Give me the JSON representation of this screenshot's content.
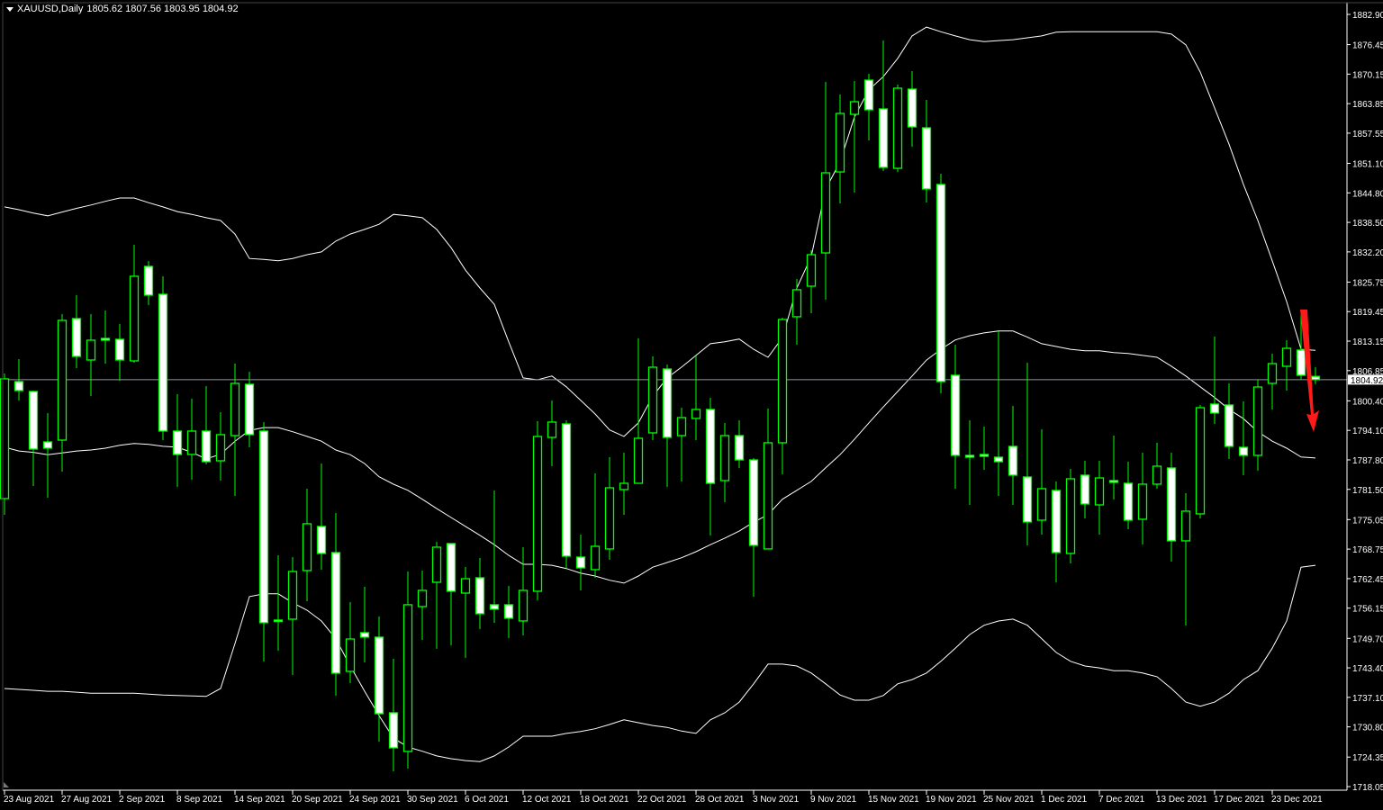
{
  "header": {
    "symbol": "XAUUSD,Daily",
    "ohlc": "1805.62 1807.56 1803.95 1804.92"
  },
  "colors": {
    "background": "#000000",
    "candle_outline": "#00ff00",
    "bull_body": "#000000",
    "bear_body": "#ffffff",
    "bands": "#ffffff",
    "price_line": "#8c96a0",
    "arrow": "#ff1a1a",
    "axis": "#ffffff"
  },
  "icons": {
    "menu": "triangle-down-icon",
    "annotation": "red-down-arrow"
  },
  "chart_data": {
    "type": "candlestick",
    "title": "XAUUSD,Daily",
    "ylim": [
      1718.05,
      1882.9
    ],
    "grid": false,
    "current_price": 1804.92,
    "current_price_label": "1804.92",
    "price_ticks": [
      "1882.90",
      "1876.45",
      "1870.15",
      "1863.85",
      "1857.55",
      "1851.10",
      "1844.80",
      "1838.50",
      "1832.20",
      "1825.75",
      "1819.45",
      "1813.15",
      "1806.85",
      "1800.40",
      "1794.10",
      "1787.80",
      "1781.50",
      "1775.05",
      "1768.75",
      "1762.45",
      "1756.15",
      "1749.70",
      "1743.40",
      "1737.10",
      "1730.80",
      "1724.35",
      "1718.05"
    ],
    "date_ticks": [
      "23 Aug 2021",
      "27 Aug 2021",
      "2 Sep 2021",
      "8 Sep 2021",
      "14 Sep 2021",
      "20 Sep 2021",
      "24 Sep 2021",
      "30 Sep 2021",
      "6 Oct 2021",
      "12 Oct 2021",
      "18 Oct 2021",
      "22 Oct 2021",
      "28 Oct 2021",
      "3 Nov 2021",
      "9 Nov 2021",
      "15 Nov 2021",
      "19 Nov 2021",
      "25 Nov 2021",
      "1 Dec 2021",
      "7 Dec 2021",
      "13 Dec 2021",
      "17 Dec 2021",
      "23 Dec 2021"
    ],
    "ohlc_fields": [
      "open",
      "high",
      "low",
      "close"
    ],
    "candles": [
      [
        1779.54,
        1806.24,
        1776.08,
        1805.09
      ],
      [
        1804.51,
        1809.31,
        1800.48,
        1802.59
      ],
      [
        1802.4,
        1802.59,
        1782.22,
        1790.1
      ],
      [
        1791.64,
        1797.79,
        1779.73,
        1790.29
      ],
      [
        1792.02,
        1818.92,
        1785.3,
        1817.58
      ],
      [
        1817.96,
        1822.96,
        1807.39,
        1809.89
      ],
      [
        1809.12,
        1818.92,
        1801.44,
        1813.35
      ],
      [
        1813.73,
        1819.69,
        1808.35,
        1813.35
      ],
      [
        1813.54,
        1816.81,
        1804.7,
        1809.12
      ],
      [
        1808.93,
        1833.71,
        1808.55,
        1827.0
      ],
      [
        1829.1,
        1830.25,
        1820.84,
        1822.96
      ],
      [
        1823.15,
        1827.0,
        1792.02,
        1793.95
      ],
      [
        1793.95,
        1801.82,
        1782.03,
        1788.95
      ],
      [
        1788.95,
        1800.86,
        1783.57,
        1793.95
      ],
      [
        1793.95,
        1803.55,
        1786.83,
        1787.41
      ],
      [
        1787.6,
        1797.98,
        1783.38,
        1793.18
      ],
      [
        1792.98,
        1808.35,
        1780.11,
        1804.13
      ],
      [
        1803.94,
        1806.63,
        1790.48,
        1793.18
      ],
      [
        1793.95,
        1795.87,
        1744.76,
        1753.03
      ],
      [
        1753.6,
        1767.44,
        1747.07,
        1753.41
      ],
      [
        1753.79,
        1767.05,
        1741.88,
        1763.97
      ],
      [
        1764.17,
        1781.65,
        1757.63,
        1774.16
      ],
      [
        1773.58,
        1787.03,
        1764.36,
        1767.82
      ],
      [
        1768.01,
        1776.46,
        1737.46,
        1742.26
      ],
      [
        1742.65,
        1757.44,
        1740.15,
        1749.56
      ],
      [
        1750.91,
        1760.7,
        1744.57,
        1749.95
      ],
      [
        1749.95,
        1754.37,
        1727.66,
        1733.61
      ],
      [
        1733.81,
        1745.34,
        1721.32,
        1726.32
      ],
      [
        1725.55,
        1763.97,
        1721.9,
        1756.87
      ],
      [
        1756.48,
        1764.17,
        1749.37,
        1759.94
      ],
      [
        1761.67,
        1770.32,
        1747.46,
        1769.16
      ],
      [
        1769.93,
        1769.93,
        1748.22,
        1759.75
      ],
      [
        1759.36,
        1764.93,
        1745.53,
        1762.43
      ],
      [
        1762.63,
        1766.86,
        1751.68,
        1754.95
      ],
      [
        1756.87,
        1781.27,
        1753.02,
        1755.91
      ],
      [
        1756.87,
        1760.9,
        1749.76,
        1753.99
      ],
      [
        1753.41,
        1769.16,
        1750.33,
        1759.94
      ],
      [
        1759.75,
        1796.06,
        1757.83,
        1792.79
      ],
      [
        1792.6,
        1800.48,
        1786.45,
        1795.87
      ],
      [
        1795.48,
        1796.25,
        1764.74,
        1767.24
      ],
      [
        1767.05,
        1771.85,
        1759.94,
        1764.74
      ],
      [
        1764.36,
        1784.91,
        1762.63,
        1769.35
      ],
      [
        1768.78,
        1788.37,
        1766.47,
        1781.84
      ],
      [
        1781.46,
        1789.33,
        1776.08,
        1782.8
      ],
      [
        1782.8,
        1813.73,
        1782.8,
        1792.41
      ],
      [
        1793.56,
        1809.89,
        1792.02,
        1807.58
      ],
      [
        1807.2,
        1808.16,
        1782.03,
        1792.6
      ],
      [
        1792.98,
        1798.94,
        1783.19,
        1796.83
      ],
      [
        1796.64,
        1810.09,
        1792.02,
        1798.56
      ],
      [
        1798.56,
        1801.05,
        1771.66,
        1782.8
      ],
      [
        1783.38,
        1795.67,
        1778.77,
        1792.98
      ],
      [
        1792.98,
        1796.25,
        1786.07,
        1787.79
      ],
      [
        1787.79,
        1788.18,
        1758.59,
        1769.55
      ],
      [
        1768.78,
        1798.75,
        1768.78,
        1791.45
      ],
      [
        1791.45,
        1818.15,
        1784.72,
        1817.77
      ],
      [
        1818.35,
        1826.41,
        1812.39,
        1824.11
      ],
      [
        1824.88,
        1832.56,
        1819.11,
        1831.6
      ],
      [
        1831.98,
        1868.49,
        1822.0,
        1849.08
      ],
      [
        1849.27,
        1865.8,
        1842.55,
        1861.76
      ],
      [
        1861.57,
        1868.68,
        1844.86,
        1864.26
      ],
      [
        1868.87,
        1870.22,
        1856.0,
        1862.53
      ],
      [
        1862.72,
        1877.32,
        1849.47,
        1850.24
      ],
      [
        1850.04,
        1867.91,
        1849.27,
        1867.14
      ],
      [
        1866.95,
        1870.79,
        1854.65,
        1858.88
      ],
      [
        1858.69,
        1864.64,
        1842.74,
        1845.63
      ],
      [
        1846.59,
        1848.9,
        1802.02,
        1804.51
      ],
      [
        1805.86,
        1812.39,
        1781.65,
        1788.76
      ],
      [
        1788.76,
        1796.25,
        1778.19,
        1788.37
      ],
      [
        1788.95,
        1794.91,
        1785.68,
        1788.56
      ],
      [
        1788.37,
        1815.27,
        1780.11,
        1787.41
      ],
      [
        1790.68,
        1799.33,
        1778.19,
        1784.53
      ],
      [
        1784.15,
        1808.55,
        1769.55,
        1774.54
      ],
      [
        1774.92,
        1794.33,
        1771.85,
        1781.65
      ],
      [
        1781.27,
        1783.19,
        1761.67,
        1768.01
      ],
      [
        1767.82,
        1785.88,
        1765.7,
        1783.76
      ],
      [
        1784.53,
        1787.6,
        1775.31,
        1778.38
      ],
      [
        1778.19,
        1787.6,
        1771.85,
        1783.95
      ],
      [
        1783.38,
        1792.98,
        1779.35,
        1783.0
      ],
      [
        1782.8,
        1787.41,
        1773.0,
        1774.92
      ],
      [
        1775.12,
        1789.33,
        1769.74,
        1782.61
      ],
      [
        1782.61,
        1791.45,
        1781.65,
        1786.45
      ],
      [
        1786.07,
        1789.33,
        1766.09,
        1770.51
      ],
      [
        1770.51,
        1780.69,
        1752.45,
        1776.85
      ],
      [
        1776.27,
        1799.52,
        1775.31,
        1798.94
      ],
      [
        1799.71,
        1814.12,
        1795.48,
        1797.79
      ],
      [
        1799.52,
        1804.13,
        1787.99,
        1790.68
      ],
      [
        1790.48,
        1800.29,
        1784.53,
        1788.76
      ],
      [
        1788.76,
        1804.9,
        1785.49,
        1803.36
      ],
      [
        1804.13,
        1810.47,
        1798.56,
        1808.35
      ],
      [
        1807.78,
        1813.35,
        1802.59,
        1811.62
      ],
      [
        1811.24,
        1818.73,
        1804.9,
        1805.86
      ],
      [
        1805.62,
        1807.56,
        1803.95,
        1804.92
      ]
    ],
    "bollinger": {
      "upper": [
        1841.8,
        1841.2,
        1840.5,
        1839.9,
        1840.7,
        1841.5,
        1842.2,
        1843.0,
        1843.7,
        1843.7,
        1842.7,
        1841.8,
        1840.8,
        1840.2,
        1839.5,
        1838.9,
        1836.0,
        1830.8,
        1830.6,
        1830.3,
        1830.8,
        1831.6,
        1832.2,
        1834.5,
        1836.0,
        1837.0,
        1838.1,
        1840.2,
        1839.9,
        1839.5,
        1837.0,
        1833.1,
        1828.3,
        1824.5,
        1821.0,
        1813.0,
        1805.3,
        1804.9,
        1805.7,
        1803.4,
        1800.5,
        1797.6,
        1794.2,
        1792.8,
        1795.7,
        1801.4,
        1805.3,
        1807.6,
        1810.1,
        1812.6,
        1813.0,
        1813.6,
        1811.4,
        1809.7,
        1813.9,
        1824.5,
        1831.2,
        1845.6,
        1851.4,
        1861.0,
        1866.8,
        1869.6,
        1873.5,
        1878.3,
        1880.2,
        1879.2,
        1878.3,
        1877.5,
        1877.1,
        1877.3,
        1877.5,
        1877.9,
        1878.3,
        1879.1,
        1879.2,
        1879.2,
        1879.2,
        1879.2,
        1879.2,
        1879.2,
        1879.2,
        1878.7,
        1876.4,
        1870.6,
        1862.9,
        1855.2,
        1846.6,
        1838.9,
        1830.3,
        1821.6,
        1811.4,
        1811.2
      ],
      "middle": [
        1790.5,
        1789.7,
        1789.4,
        1788.9,
        1789.3,
        1789.7,
        1789.9,
        1790.3,
        1790.9,
        1791.3,
        1791.1,
        1790.7,
        1790.5,
        1789.4,
        1788.0,
        1789.0,
        1791.8,
        1794.1,
        1794.7,
        1794.7,
        1793.8,
        1792.8,
        1791.8,
        1789.9,
        1788.9,
        1787.0,
        1784.2,
        1782.6,
        1781.3,
        1779.4,
        1777.4,
        1775.5,
        1773.6,
        1771.7,
        1769.7,
        1767.4,
        1765.5,
        1765.5,
        1765.3,
        1764.6,
        1763.6,
        1763.0,
        1762.1,
        1761.5,
        1763.0,
        1764.9,
        1765.9,
        1766.9,
        1768.2,
        1769.7,
        1771.1,
        1772.6,
        1774.5,
        1776.1,
        1779.4,
        1781.3,
        1783.2,
        1786.1,
        1788.9,
        1792.2,
        1795.7,
        1799.1,
        1802.4,
        1805.7,
        1809.1,
        1811.4,
        1813.4,
        1814.3,
        1814.9,
        1815.3,
        1815.3,
        1814.0,
        1812.6,
        1812.0,
        1811.4,
        1811.1,
        1811.1,
        1810.7,
        1810.5,
        1810.1,
        1809.7,
        1807.8,
        1805.7,
        1803.4,
        1801.1,
        1798.6,
        1796.6,
        1793.8,
        1791.8,
        1790.3,
        1788.4,
        1788.2
      ],
      "lower": [
        1739.0,
        1738.8,
        1738.6,
        1738.4,
        1738.4,
        1738.2,
        1738.0,
        1738.0,
        1738.0,
        1738.0,
        1737.8,
        1737.6,
        1737.5,
        1737.4,
        1737.3,
        1739.0,
        1748.6,
        1758.6,
        1759.2,
        1759.2,
        1757.3,
        1755.7,
        1753.4,
        1749.6,
        1743.8,
        1738.4,
        1733.2,
        1728.4,
        1726.5,
        1725.6,
        1724.6,
        1724.0,
        1723.6,
        1723.4,
        1724.6,
        1726.5,
        1728.8,
        1728.8,
        1728.8,
        1729.4,
        1729.8,
        1730.4,
        1731.3,
        1732.3,
        1731.7,
        1731.1,
        1730.7,
        1729.9,
        1729.4,
        1732.3,
        1733.8,
        1736.1,
        1740.0,
        1744.2,
        1744.2,
        1743.8,
        1742.3,
        1740.0,
        1737.6,
        1736.5,
        1736.5,
        1737.5,
        1740.0,
        1740.9,
        1742.3,
        1744.8,
        1747.6,
        1750.5,
        1752.5,
        1753.4,
        1753.8,
        1752.5,
        1749.6,
        1746.7,
        1744.8,
        1743.8,
        1743.4,
        1742.8,
        1742.8,
        1742.3,
        1741.5,
        1739.0,
        1736.1,
        1735.2,
        1736.1,
        1738.0,
        1740.9,
        1742.8,
        1747.6,
        1753.4,
        1764.9,
        1765.3
      ]
    }
  }
}
